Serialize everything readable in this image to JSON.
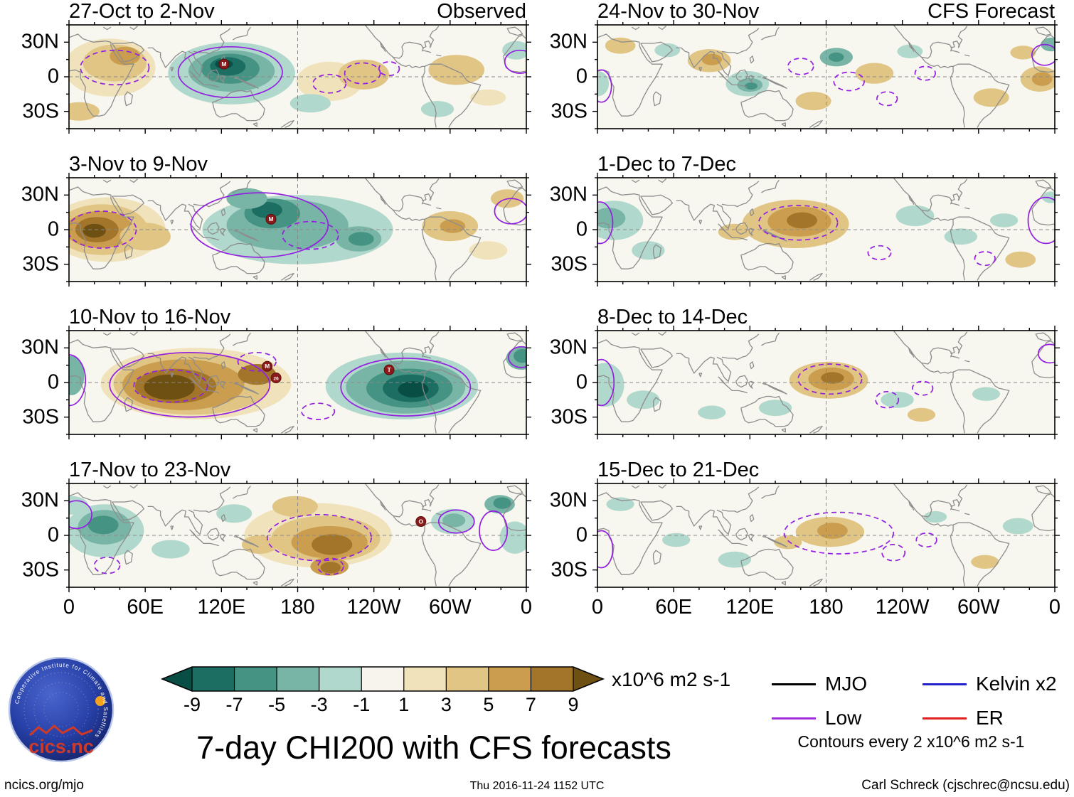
{
  "chart_data": {
    "type": "heatmap",
    "subtype": "filled-contour-anomaly-maps",
    "title": "7-day CHI200 with CFS forecasts",
    "columns": [
      "Observed",
      "CFS Forecast"
    ],
    "x_ticks": [
      "0",
      "60E",
      "120E",
      "180",
      "120W",
      "60W",
      "0"
    ],
    "y_ticks": [
      "30N",
      "0",
      "30S"
    ],
    "lon_range": [
      0,
      360
    ],
    "lat_range": [
      -45,
      45
    ],
    "colorbar": {
      "tick_labels": [
        "-9",
        "-7",
        "-5",
        "-3",
        "-1",
        "1",
        "3",
        "5",
        "7",
        "9"
      ],
      "levels": [
        -9,
        -7,
        -5,
        -3,
        -1,
        1,
        3,
        5,
        7,
        9
      ],
      "colors": [
        "#084e44",
        "#1b6e61",
        "#459383",
        "#79b5a7",
        "#b1d8cc",
        "#f6f4ec",
        "#f0e3bb",
        "#e0c585",
        "#cb9d4e",
        "#a2752b",
        "#6e5013"
      ],
      "label": "x10^6 m2 s-1"
    },
    "legend": {
      "items": [
        {
          "label": "MJO",
          "color": "#000000"
        },
        {
          "label": "Low",
          "color": "#a22ce0"
        },
        {
          "label": "Kelvin x2",
          "color": "#2222cc"
        },
        {
          "label": "ER",
          "color": "#e02020"
        }
      ],
      "note": "Contours every 2 x10^6 m2 s-1"
    },
    "contour_color": "#9320e0",
    "panels": [
      {
        "title": "27-Oct to 2-Nov",
        "anomalies": [
          [
            128,
            3,
            50,
            27,
            -3
          ],
          [
            128,
            5,
            34,
            18,
            -5
          ],
          [
            127,
            7,
            23,
            13,
            -7
          ],
          [
            125,
            9,
            14,
            8,
            -9
          ],
          [
            122,
            11,
            7,
            4,
            -11
          ],
          [
            32,
            8,
            36,
            25,
            1
          ],
          [
            36,
            12,
            25,
            16,
            3
          ],
          [
            44,
            18,
            12,
            8,
            5
          ],
          [
            8,
            -30,
            16,
            8,
            3
          ],
          [
            205,
            -4,
            26,
            17,
            1
          ],
          [
            232,
            2,
            20,
            13,
            3
          ],
          [
            190,
            -23,
            16,
            8,
            -3
          ],
          [
            305,
            6,
            22,
            13,
            3
          ],
          [
            290,
            -28,
            13,
            7,
            -3
          ],
          [
            330,
            -18,
            14,
            7,
            1
          ],
          [
            352,
            23,
            11,
            8,
            -3
          ]
        ],
        "contours": [
          [
            127,
            4,
            41,
            22,
            "s"
          ],
          [
            36,
            8,
            27,
            15,
            "d"
          ],
          [
            231,
            3,
            14,
            9,
            "d"
          ],
          [
            252,
            7,
            8,
            6,
            "d"
          ],
          [
            205,
            -6,
            13,
            8,
            "d"
          ],
          [
            355,
            13,
            12,
            10,
            "s"
          ]
        ],
        "markers": [
          [
            122,
            11,
            "M"
          ]
        ]
      },
      {
        "title": "3-Nov to 9-Nov",
        "anomalies": [
          [
            30,
            0,
            46,
            28,
            1
          ],
          [
            26,
            0,
            36,
            22,
            3
          ],
          [
            24,
            0,
            27,
            16,
            5
          ],
          [
            22,
            0,
            17,
            11,
            7
          ],
          [
            20,
            -1,
            9,
            6,
            9
          ],
          [
            60,
            -6,
            20,
            12,
            3
          ],
          [
            180,
            0,
            75,
            30,
            -3
          ],
          [
            172,
            4,
            48,
            22,
            -5
          ],
          [
            160,
            14,
            22,
            13,
            -7
          ],
          [
            156,
            17,
            12,
            7,
            -9
          ],
          [
            140,
            27,
            16,
            9,
            -5
          ],
          [
            228,
            -8,
            18,
            11,
            -5
          ],
          [
            230,
            -8,
            10,
            6,
            -7
          ],
          [
            300,
            3,
            22,
            13,
            3
          ],
          [
            302,
            3,
            10,
            6,
            5
          ],
          [
            345,
            27,
            13,
            8,
            3
          ],
          [
            330,
            -18,
            15,
            8,
            1
          ]
        ],
        "contours": [
          [
            26,
            0,
            27,
            16,
            "d"
          ],
          [
            150,
            4,
            54,
            28,
            "s"
          ],
          [
            190,
            -5,
            22,
            12,
            "d"
          ],
          [
            348,
            16,
            13,
            11,
            "s"
          ]
        ],
        "markers": [
          [
            159,
            9,
            "M"
          ]
        ]
      },
      {
        "title": "10-Nov to 16-Nov",
        "anomalies": [
          [
            100,
            -1,
            75,
            31,
            1
          ],
          [
            97,
            -1,
            62,
            27,
            3
          ],
          [
            90,
            -2,
            48,
            22,
            5
          ],
          [
            84,
            -3,
            32,
            15,
            7
          ],
          [
            79,
            -4,
            20,
            11,
            9
          ],
          [
            148,
            7,
            15,
            9,
            7
          ],
          [
            262,
            -3,
            60,
            29,
            -3
          ],
          [
            265,
            -4,
            47,
            23,
            -5
          ],
          [
            268,
            -5,
            34,
            17,
            -7
          ],
          [
            269,
            -5,
            22,
            12,
            -9
          ],
          [
            271,
            -6,
            12,
            7,
            -11
          ],
          [
            2,
            6,
            10,
            17,
            -5
          ],
          [
            356,
            21,
            12,
            10,
            -5
          ],
          [
            357,
            23,
            7,
            6,
            -7
          ]
        ],
        "contours": [
          [
            95,
            -2,
            63,
            28,
            "s"
          ],
          [
            80,
            -3,
            29,
            14,
            "d"
          ],
          [
            148,
            18,
            15,
            8,
            "d"
          ],
          [
            196,
            -25,
            13,
            7,
            "d"
          ],
          [
            265,
            -4,
            51,
            25,
            "s"
          ],
          [
            0,
            2,
            13,
            22,
            "s"
          ],
          [
            356,
            22,
            10,
            9,
            "s"
          ]
        ],
        "markers": [
          [
            156,
            14,
            "M"
          ],
          [
            163,
            4,
            "26"
          ],
          [
            252,
            11,
            "T"
          ]
        ]
      },
      {
        "title": "17-Nov to 23-Nov",
        "anomalies": [
          [
            28,
            4,
            31,
            23,
            -3
          ],
          [
            28,
            7,
            21,
            15,
            -5
          ],
          [
            27,
            9,
            12,
            8,
            -7
          ],
          [
            2,
            26,
            13,
            8,
            -3
          ],
          [
            80,
            -12,
            15,
            8,
            -3
          ],
          [
            130,
            19,
            14,
            8,
            -3
          ],
          [
            196,
            0,
            58,
            28,
            1
          ],
          [
            202,
            -3,
            43,
            20,
            3
          ],
          [
            205,
            -6,
            30,
            14,
            5
          ],
          [
            207,
            -8,
            16,
            9,
            7
          ],
          [
            205,
            -27,
            15,
            8,
            5
          ],
          [
            206,
            -28,
            8,
            5,
            7
          ],
          [
            178,
            25,
            18,
            9,
            3
          ],
          [
            150,
            -8,
            14,
            8,
            3
          ],
          [
            302,
            12,
            17,
            11,
            -3
          ],
          [
            303,
            13,
            9,
            6,
            -5
          ],
          [
            339,
            27,
            12,
            8,
            -5
          ],
          [
            341,
            28,
            7,
            5,
            -7
          ],
          [
            351,
            -2,
            12,
            14,
            -3
          ]
        ],
        "contours": [
          [
            6,
            18,
            12,
            12,
            "s"
          ],
          [
            30,
            -26,
            10,
            7,
            "d"
          ],
          [
            197,
            -2,
            41,
            20,
            "d"
          ],
          [
            206,
            -27,
            10,
            7,
            "d"
          ],
          [
            305,
            12,
            14,
            10,
            "s"
          ],
          [
            334,
            4,
            11,
            17,
            "s"
          ]
        ],
        "markers": [
          [
            277,
            12,
            "O"
          ]
        ]
      },
      {
        "title": "24-Nov to 30-Nov",
        "anomalies": [
          [
            18,
            27,
            12,
            7,
            3
          ],
          [
            0,
            -6,
            9,
            11,
            -3
          ],
          [
            55,
            23,
            10,
            6,
            -3
          ],
          [
            88,
            14,
            17,
            10,
            3
          ],
          [
            90,
            15,
            8,
            5,
            5
          ],
          [
            118,
            -6,
            17,
            11,
            -3
          ],
          [
            120,
            -7,
            10,
            6,
            -5
          ],
          [
            121,
            -8,
            5,
            3,
            -7
          ],
          [
            188,
            17,
            13,
            8,
            -5
          ],
          [
            188,
            17,
            6,
            4,
            -7
          ],
          [
            170,
            -21,
            14,
            8,
            3
          ],
          [
            218,
            3,
            15,
            9,
            3
          ],
          [
            246,
            22,
            10,
            6,
            -3
          ],
          [
            310,
            -18,
            14,
            8,
            3
          ],
          [
            335,
            21,
            10,
            6,
            3
          ],
          [
            348,
            -2,
            15,
            11,
            3
          ],
          [
            350,
            -2,
            8,
            6,
            5
          ],
          [
            357,
            28,
            8,
            6,
            -5
          ]
        ],
        "contours": [
          [
            3,
            -8,
            8,
            14,
            "s"
          ],
          [
            160,
            9,
            10,
            7,
            "d"
          ],
          [
            198,
            -4,
            12,
            8,
            "d"
          ],
          [
            228,
            -19,
            8,
            6,
            "d"
          ],
          [
            258,
            3,
            8,
            6,
            "d"
          ],
          [
            352,
            19,
            10,
            9,
            "s"
          ]
        ],
        "markers": []
      },
      {
        "title": "1-Dec to 7-Dec",
        "anomalies": [
          [
            13,
            8,
            23,
            17,
            -3
          ],
          [
            9,
            10,
            13,
            9,
            -5
          ],
          [
            40,
            -18,
            13,
            8,
            -3
          ],
          [
            108,
            -2,
            13,
            7,
            3
          ],
          [
            156,
            5,
            42,
            21,
            3
          ],
          [
            159,
            7,
            25,
            13,
            5
          ],
          [
            161,
            8,
            12,
            7,
            7
          ],
          [
            250,
            12,
            15,
            9,
            -3
          ],
          [
            286,
            -6,
            13,
            7,
            -3
          ],
          [
            320,
            8,
            11,
            6,
            -3
          ],
          [
            333,
            -26,
            12,
            7,
            3
          ],
          [
            357,
            28,
            7,
            5,
            -3
          ]
        ],
        "contours": [
          [
            2,
            6,
            10,
            18,
            "s"
          ],
          [
            158,
            6,
            31,
            15,
            "d"
          ],
          [
            222,
            -20,
            9,
            6,
            "d"
          ],
          [
            305,
            -25,
            8,
            6,
            "d"
          ],
          [
            353,
            8,
            14,
            20,
            "s"
          ]
        ],
        "markers": []
      },
      {
        "title": "8-Dec to 14-Dec",
        "anomalies": [
          [
            6,
            -2,
            15,
            19,
            -3
          ],
          [
            36,
            -15,
            13,
            8,
            -3
          ],
          [
            90,
            -26,
            11,
            6,
            -3
          ],
          [
            140,
            -22,
            13,
            7,
            -3
          ],
          [
            182,
            2,
            31,
            16,
            3
          ],
          [
            184,
            3,
            18,
            10,
            5
          ],
          [
            185,
            4,
            9,
            5,
            7
          ],
          [
            236,
            -15,
            13,
            7,
            -3
          ],
          [
            306,
            -10,
            11,
            6,
            -3
          ],
          [
            255,
            -28,
            11,
            6,
            3
          ]
        ],
        "contours": [
          [
            3,
            0,
            10,
            20,
            "s"
          ],
          [
            183,
            3,
            25,
            13,
            "d"
          ],
          [
            228,
            -15,
            9,
            7,
            "d"
          ],
          [
            256,
            -5,
            8,
            6,
            "d"
          ],
          [
            356,
            25,
            9,
            8,
            "s"
          ]
        ],
        "markers": []
      },
      {
        "title": "15-Dec to 21-Dec",
        "anomalies": [
          [
            18,
            27,
            11,
            6,
            -3
          ],
          [
            62,
            -4,
            11,
            6,
            -3
          ],
          [
            108,
            -21,
            13,
            7,
            -3
          ],
          [
            150,
            -6,
            11,
            6,
            3
          ],
          [
            183,
            3,
            27,
            13,
            3
          ],
          [
            185,
            4,
            12,
            7,
            5
          ],
          [
            266,
            16,
            9,
            5,
            -3
          ],
          [
            305,
            -23,
            11,
            6,
            3
          ],
          [
            331,
            8,
            12,
            7,
            -3
          ]
        ],
        "contours": [
          [
            3,
            -12,
            9,
            16,
            "s"
          ],
          [
            190,
            2,
            43,
            18,
            "d"
          ],
          [
            233,
            -15,
            9,
            7,
            "d"
          ],
          [
            259,
            -4,
            8,
            6,
            "d"
          ]
        ],
        "markers": []
      }
    ]
  },
  "footer": {
    "left": "ncics.org/mjo",
    "center": "Thu 2016-11-24 1152 UTC",
    "right": "Carl Schreck (cjschrec@ncsu.edu)"
  },
  "logo": {
    "text": "cics.nc",
    "ring_text": "Cooperative Institute for Climate and Satellites"
  }
}
